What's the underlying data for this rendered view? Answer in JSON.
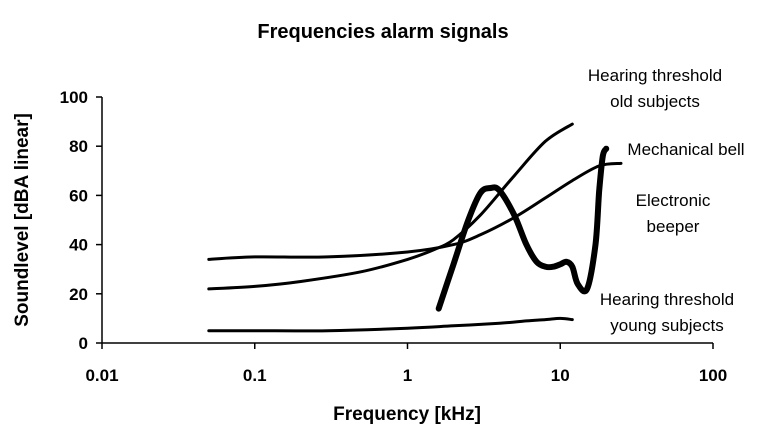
{
  "chart_data": {
    "type": "line",
    "title": "Frequencies alarm signals",
    "xlabel": "Frequency [kHz]",
    "ylabel": "Soundlevel [dBA linear]",
    "x_scale": "log",
    "xlim": [
      0.01,
      100
    ],
    "ylim": [
      0,
      100
    ],
    "x_ticks": [
      "0.01",
      "0.1",
      "1",
      "10",
      "100"
    ],
    "y_ticks": [
      "0",
      "20",
      "40",
      "60",
      "80",
      "100"
    ],
    "grid": false,
    "legend": "none",
    "series": [
      {
        "name": "Hearing threshold old subjects",
        "stroke_width": 3,
        "x": [
          0.05,
          0.1,
          0.2,
          0.5,
          1,
          1.5,
          2,
          3,
          5,
          8,
          12
        ],
        "y": [
          22,
          23,
          25,
          29,
          34,
          38,
          42,
          52,
          68,
          82,
          89
        ]
      },
      {
        "name": "Mechanical bell",
        "stroke_width": 3,
        "x": [
          0.05,
          0.1,
          0.3,
          1,
          2,
          3,
          5,
          8,
          12,
          18,
          25
        ],
        "y": [
          34,
          35,
          35,
          37,
          40,
          44,
          51,
          59,
          66,
          72,
          73
        ]
      },
      {
        "name": "Electronic beeper",
        "stroke_width": 6,
        "x": [
          1.6,
          2,
          2.5,
          3,
          3.5,
          4,
          5,
          6,
          7,
          8,
          9,
          10,
          11,
          12,
          13,
          15,
          17,
          18,
          19,
          20
        ],
        "y": [
          14,
          32,
          50,
          61,
          63,
          62,
          52,
          40,
          33,
          31,
          31,
          32,
          33,
          31,
          24,
          22,
          40,
          62,
          76,
          79
        ]
      },
      {
        "name": "Hearing threshold young subjects",
        "stroke_width": 3,
        "x": [
          0.05,
          0.1,
          0.3,
          1,
          2,
          4,
          6,
          8,
          10,
          12
        ],
        "y": [
          5,
          5,
          5,
          6,
          7,
          8,
          9,
          9.5,
          10,
          9.5
        ]
      }
    ],
    "annotations": [
      {
        "id": "old",
        "lines": [
          "Hearing threshold",
          "old subjects"
        ]
      },
      {
        "id": "bell",
        "lines": [
          "Mechanical bell"
        ]
      },
      {
        "id": "beeper",
        "lines": [
          "Electronic",
          "beeper"
        ]
      },
      {
        "id": "young",
        "lines": [
          "Hearing threshold",
          "young subjects"
        ]
      }
    ]
  }
}
